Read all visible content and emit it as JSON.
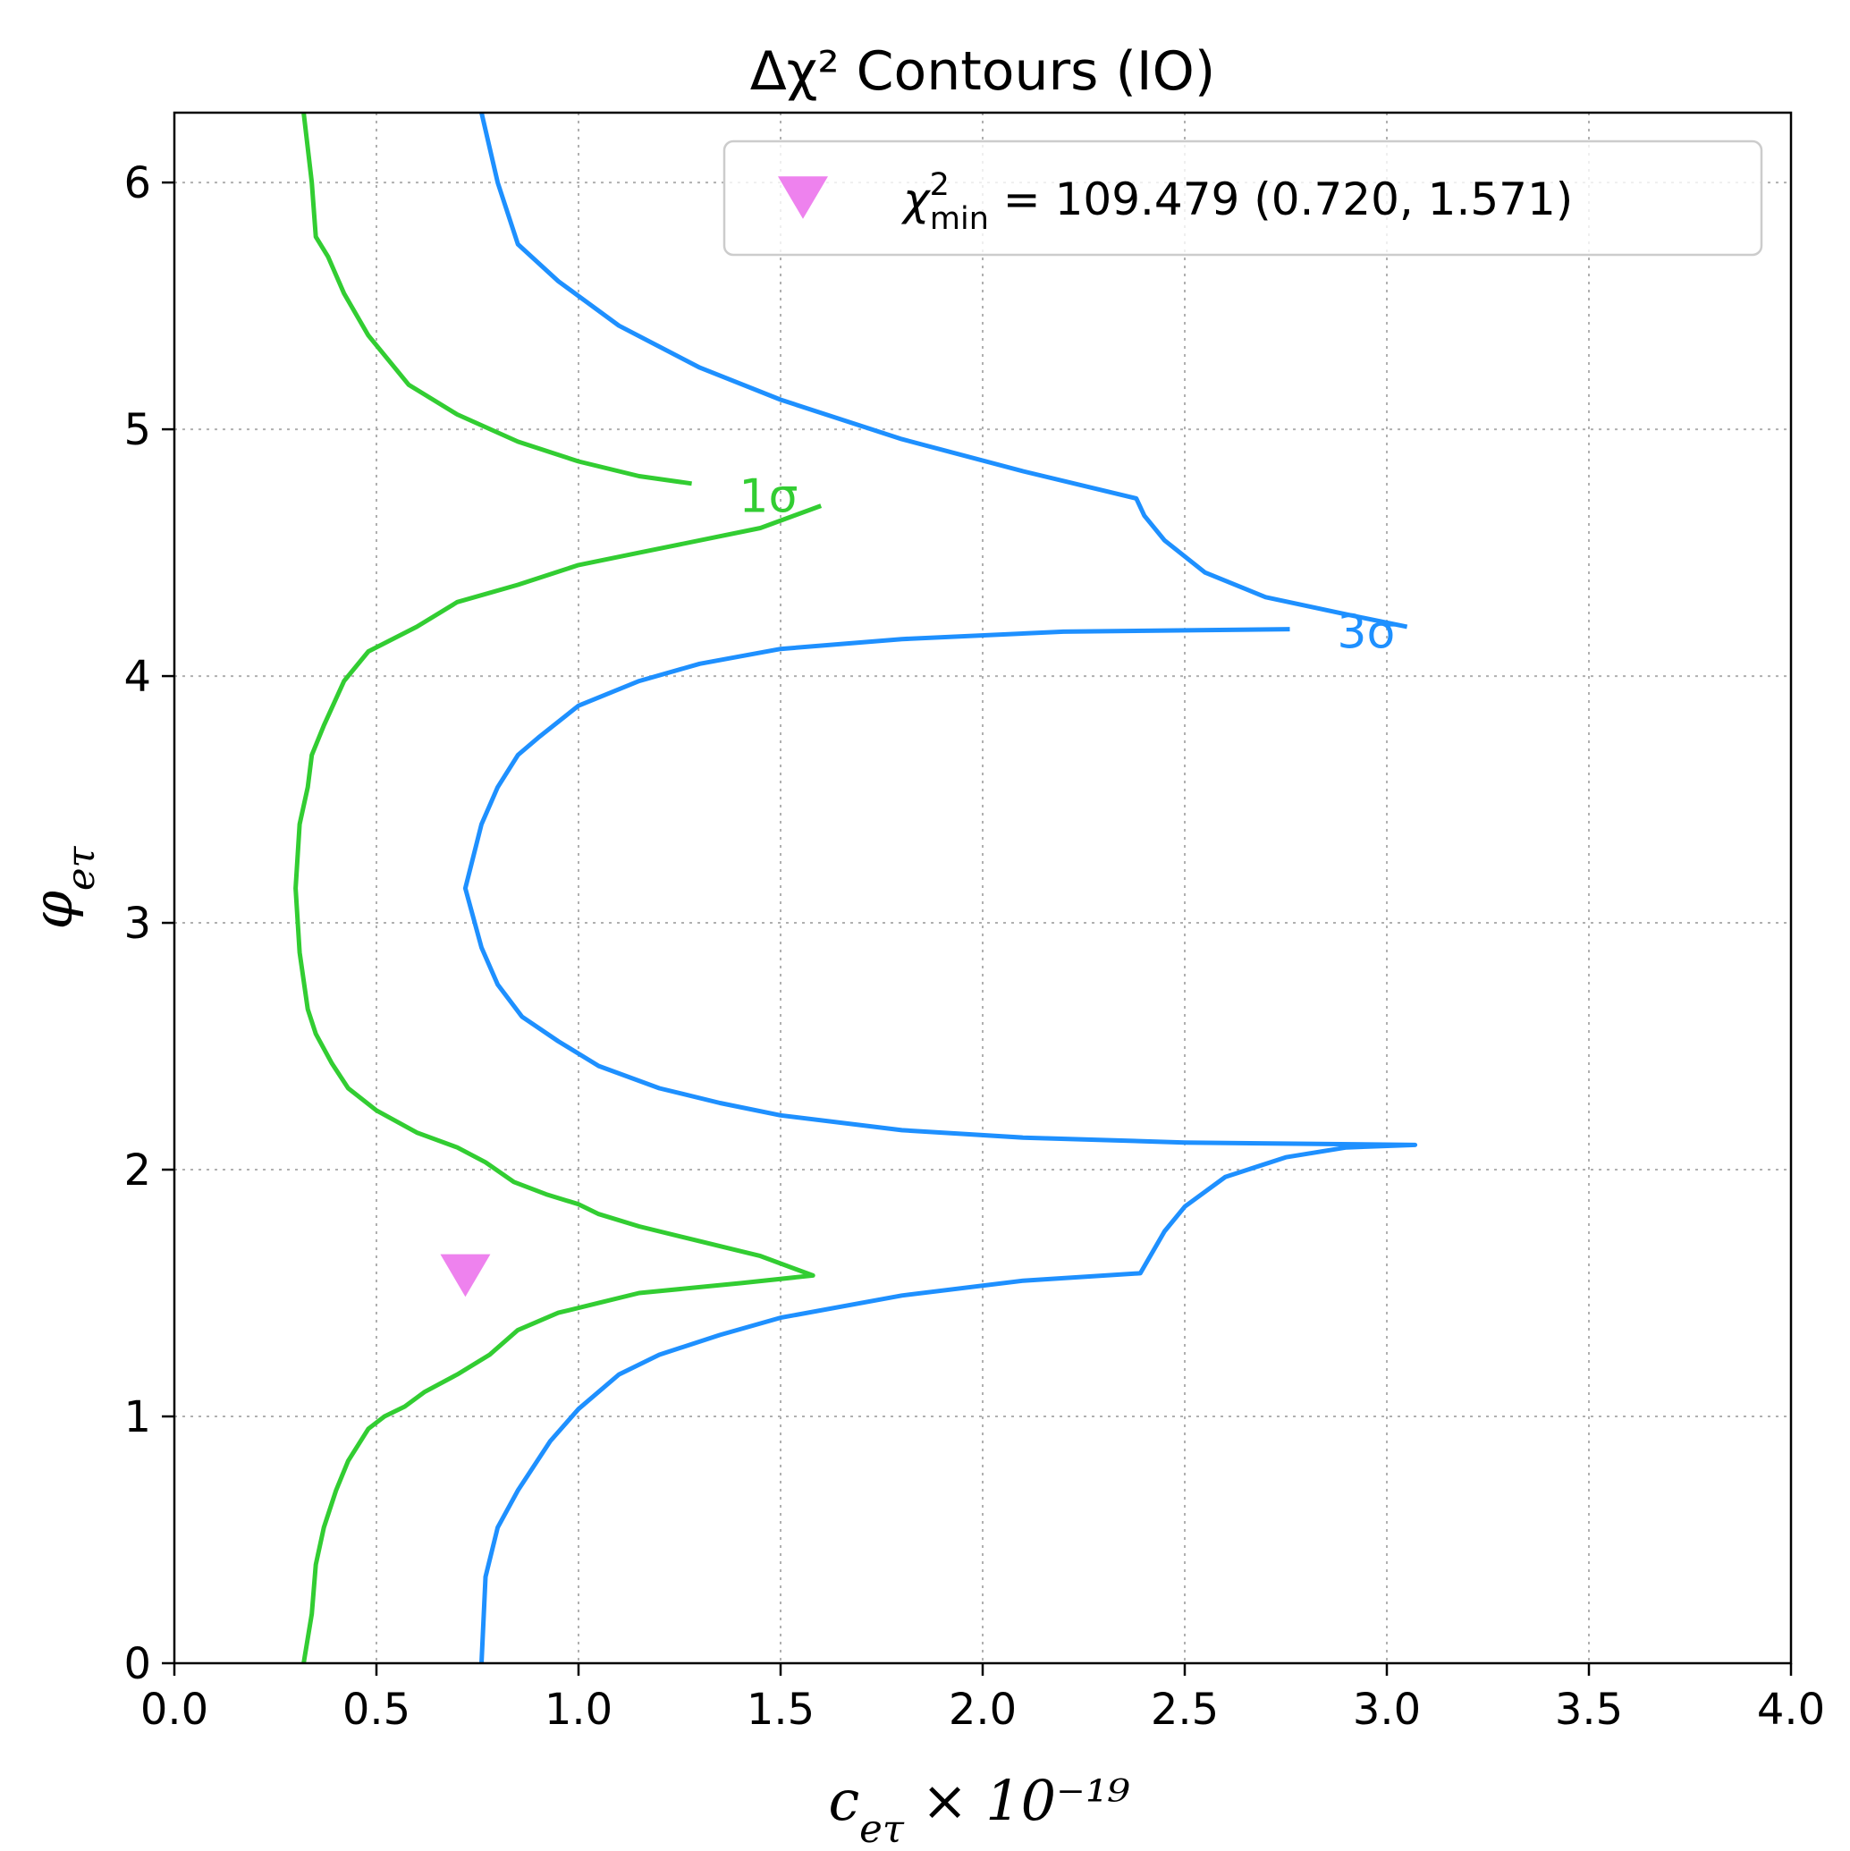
{
  "chart_data": {
    "type": "line",
    "title": "Δχ² Contours (IO)",
    "xlabel": "c_{eτ} × 10⁻¹⁹",
    "ylabel": "φ_{eτ}",
    "xlim": [
      0,
      4
    ],
    "ylim": [
      0,
      6.283
    ],
    "xticks": [
      0.0,
      0.5,
      1.0,
      1.5,
      2.0,
      2.5,
      3.0,
      3.5,
      4.0
    ],
    "xtick_labels": [
      "0.0",
      "0.5",
      "1.0",
      "1.5",
      "2.0",
      "2.5",
      "3.0",
      "3.5",
      "4.0"
    ],
    "yticks": [
      0,
      1,
      2,
      3,
      4,
      5,
      6
    ],
    "ytick_labels": [
      "0",
      "1",
      "2",
      "3",
      "4",
      "5",
      "6"
    ],
    "grid": true,
    "legend": {
      "placement": "top-right",
      "entries": [
        {
          "marker": "triangle-down",
          "color": "#ee82ee",
          "label": "χ²min = 109.479 (0.720, 1.571)"
        }
      ]
    },
    "colors": {
      "one_sigma": "#32cd32",
      "three_sigma": "#1e90ff",
      "marker": "#ee82ee"
    },
    "min_point": {
      "x": 0.72,
      "y": 1.571,
      "value": 109.479
    },
    "contours": [
      {
        "label": "1σ",
        "label_pos": {
          "x": 1.47,
          "y": 4.73
        },
        "segments": [
          [
            [
              0.32,
              6.283
            ],
            [
              0.34,
              6.0
            ],
            [
              0.35,
              5.78
            ],
            [
              0.38,
              5.7
            ],
            [
              0.42,
              5.55
            ],
            [
              0.48,
              5.38
            ],
            [
              0.58,
              5.18
            ],
            [
              0.7,
              5.06
            ],
            [
              0.85,
              4.95
            ],
            [
              1.0,
              4.87
            ],
            [
              1.15,
              4.81
            ],
            [
              1.28,
              4.78
            ]
          ],
          [
            [
              1.6,
              4.69
            ],
            [
              1.45,
              4.6
            ],
            [
              1.15,
              4.5
            ],
            [
              1.0,
              4.45
            ],
            [
              0.85,
              4.37
            ],
            [
              0.7,
              4.3
            ],
            [
              0.6,
              4.2
            ],
            [
              0.48,
              4.1
            ],
            [
              0.42,
              3.98
            ],
            [
              0.37,
              3.8
            ],
            [
              0.34,
              3.68
            ],
            [
              0.33,
              3.55
            ],
            [
              0.31,
              3.4
            ],
            [
              0.3,
              3.14
            ],
            [
              0.31,
              2.88
            ],
            [
              0.33,
              2.65
            ],
            [
              0.35,
              2.55
            ],
            [
              0.39,
              2.43
            ],
            [
              0.43,
              2.33
            ],
            [
              0.5,
              2.24
            ],
            [
              0.6,
              2.15
            ],
            [
              0.7,
              2.09
            ],
            [
              0.77,
              2.03
            ],
            [
              0.84,
              1.95
            ],
            [
              0.92,
              1.9
            ],
            [
              1.0,
              1.86
            ],
            [
              1.05,
              1.82
            ],
            [
              1.15,
              1.77
            ],
            [
              1.3,
              1.71
            ],
            [
              1.45,
              1.65
            ],
            [
              1.58,
              1.571
            ],
            [
              1.4,
              1.54
            ],
            [
              1.15,
              1.5
            ],
            [
              1.05,
              1.46
            ],
            [
              0.95,
              1.42
            ],
            [
              0.85,
              1.35
            ],
            [
              0.78,
              1.25
            ],
            [
              0.7,
              1.17
            ],
            [
              0.62,
              1.1
            ],
            [
              0.57,
              1.04
            ],
            [
              0.52,
              1.0
            ],
            [
              0.48,
              0.95
            ],
            [
              0.43,
              0.82
            ],
            [
              0.4,
              0.7
            ],
            [
              0.37,
              0.55
            ],
            [
              0.35,
              0.4
            ],
            [
              0.34,
              0.2
            ],
            [
              0.32,
              0.0
            ]
          ]
        ]
      },
      {
        "label": "3σ",
        "label_pos": {
          "x": 2.95,
          "y": 4.18
        },
        "segments": [
          [
            [
              0.76,
              6.283
            ],
            [
              0.8,
              6.0
            ],
            [
              0.85,
              5.75
            ],
            [
              0.95,
              5.6
            ],
            [
              1.1,
              5.42
            ],
            [
              1.3,
              5.25
            ],
            [
              1.5,
              5.12
            ],
            [
              1.8,
              4.96
            ],
            [
              2.1,
              4.83
            ],
            [
              2.38,
              4.72
            ],
            [
              2.4,
              4.65
            ],
            [
              2.45,
              4.55
            ],
            [
              2.55,
              4.42
            ],
            [
              2.7,
              4.32
            ],
            [
              2.9,
              4.25
            ],
            [
              3.05,
              4.2
            ]
          ],
          [
            [
              2.76,
              4.19
            ],
            [
              2.2,
              4.18
            ],
            [
              1.8,
              4.15
            ],
            [
              1.5,
              4.11
            ],
            [
              1.3,
              4.05
            ],
            [
              1.15,
              3.98
            ],
            [
              1.0,
              3.88
            ],
            [
              0.9,
              3.75
            ],
            [
              0.85,
              3.68
            ],
            [
              0.8,
              3.55
            ],
            [
              0.76,
              3.4
            ],
            [
              0.72,
              3.14
            ],
            [
              0.76,
              2.9
            ],
            [
              0.8,
              2.75
            ],
            [
              0.86,
              2.62
            ],
            [
              0.95,
              2.52
            ],
            [
              1.05,
              2.42
            ],
            [
              1.2,
              2.33
            ],
            [
              1.35,
              2.27
            ],
            [
              1.5,
              2.22
            ],
            [
              1.8,
              2.16
            ],
            [
              2.1,
              2.13
            ],
            [
              2.5,
              2.11
            ],
            [
              3.07,
              2.1
            ],
            [
              2.9,
              2.09
            ],
            [
              2.75,
              2.05
            ],
            [
              2.6,
              1.97
            ],
            [
              2.5,
              1.85
            ],
            [
              2.45,
              1.75
            ],
            [
              2.39,
              1.58
            ],
            [
              2.1,
              1.55
            ],
            [
              1.8,
              1.49
            ],
            [
              1.5,
              1.4
            ],
            [
              1.35,
              1.33
            ],
            [
              1.2,
              1.25
            ],
            [
              1.1,
              1.17
            ],
            [
              1.0,
              1.03
            ],
            [
              0.93,
              0.9
            ],
            [
              0.85,
              0.7
            ],
            [
              0.8,
              0.55
            ],
            [
              0.77,
              0.35
            ],
            [
              0.76,
              0.0
            ]
          ]
        ]
      }
    ]
  }
}
